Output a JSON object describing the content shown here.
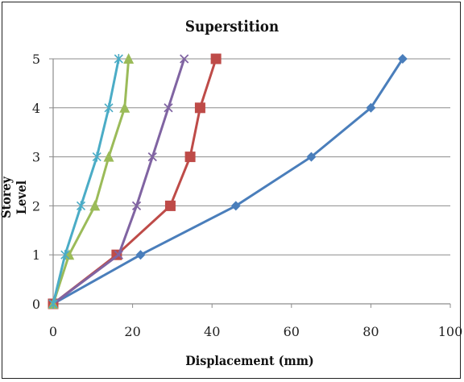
{
  "chart_data": {
    "type": "line",
    "title": "Superstition",
    "xlabel": "Displacement (mm)",
    "ylabel": "Storey Level",
    "xlim": [
      0,
      100
    ],
    "ylim": [
      0,
      5
    ],
    "xticks": [
      "0",
      "20",
      "40",
      "60",
      "80",
      "100"
    ],
    "yticks": [
      "0",
      "1",
      "2",
      "3",
      "4",
      "5"
    ],
    "grid": "horizontal",
    "series": [
      {
        "color": "#4a7ebb",
        "marker": "diamond",
        "x": [
          0,
          22,
          46,
          65,
          80,
          88
        ],
        "y": [
          0,
          1,
          2,
          3,
          4,
          5
        ]
      },
      {
        "color": "#be4b48",
        "marker": "square",
        "x": [
          0,
          16,
          29.5,
          34.5,
          37,
          41
        ],
        "y": [
          0,
          1,
          2,
          3,
          4,
          5
        ]
      },
      {
        "color": "#8064a2",
        "marker": "x",
        "x": [
          0,
          16.5,
          21,
          25,
          29,
          33
        ],
        "y": [
          0,
          1,
          2,
          3,
          4,
          5
        ]
      },
      {
        "color": "#9bbb59",
        "marker": "triangle",
        "x": [
          0,
          4,
          10.5,
          14,
          18,
          19
        ],
        "y": [
          0,
          1,
          2,
          3,
          4,
          5
        ]
      },
      {
        "color": "#4bacc6",
        "marker": "star",
        "x": [
          0,
          3,
          7,
          11,
          14,
          16.5
        ],
        "y": [
          0,
          1,
          2,
          3,
          4,
          5
        ]
      }
    ]
  }
}
